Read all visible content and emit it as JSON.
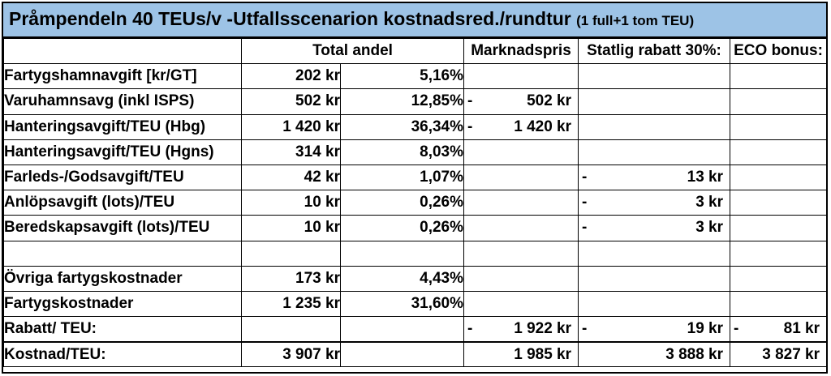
{
  "title": {
    "main": "Pråmpendeln 40 TEUs/v -Utfallsscenarion kostnadsred./rundtur",
    "sub": "(1 full+1 tom TEU)"
  },
  "headers": {
    "total_andel": "Total andel",
    "marknadspris": "Marknadspris",
    "statlig_rabatt": "Statlig rabatt 30%:",
    "eco_bonus": "ECO bonus:"
  },
  "rows": [
    {
      "label": "Fartygshamnavgift [kr/GT]",
      "amount": "202 kr",
      "share": "5,16%",
      "market": "",
      "state": "",
      "eco": ""
    },
    {
      "label": "Varuhamnsavg (inkl ISPS)",
      "amount": "502 kr",
      "share": "12,85%",
      "market_dash": "-",
      "market": "502 kr",
      "state": "",
      "eco": ""
    },
    {
      "label": "Hanteringsavgift/TEU (Hbg)",
      "amount": "1 420 kr",
      "share": "36,34%",
      "market_dash": "-",
      "market": "1 420 kr",
      "state": "",
      "eco": ""
    },
    {
      "label": "Hanteringsavgift/TEU (Hgns)",
      "amount": "314 kr",
      "share": "8,03%",
      "market": "",
      "state": "",
      "eco": ""
    },
    {
      "label": "Farleds-/Godsavgift/TEU",
      "amount": "42 kr",
      "share": "1,07%",
      "market": "",
      "state_dash": "-",
      "state": "13 kr",
      "eco": ""
    },
    {
      "label": "Anlöpsavgift (lots)/TEU",
      "amount": "10 kr",
      "share": "0,26%",
      "market": "",
      "state_dash": "-",
      "state": "3 kr",
      "eco": ""
    },
    {
      "label": "Beredskapsavgift (lots)/TEU",
      "amount": "10 kr",
      "share": "0,26%",
      "market": "",
      "state_dash": "-",
      "state": "3 kr",
      "eco": ""
    },
    {
      "label": "",
      "amount": "",
      "share": "",
      "market": "",
      "state": "",
      "eco": ""
    },
    {
      "label": "Övriga fartygskostnader",
      "amount": "173 kr",
      "share": "4,43%",
      "market": "",
      "state": "",
      "eco": ""
    },
    {
      "label": "Fartygskostnader",
      "amount": "1 235 kr",
      "share": "31,60%",
      "market": "",
      "state": "",
      "eco": ""
    },
    {
      "label": "Rabatt/ TEU:",
      "amount": "",
      "share": "",
      "market_dash": "-",
      "market": "1 922 kr",
      "state_dash": "-",
      "state": "19 kr",
      "eco_dash": "-",
      "eco": "81 kr"
    },
    {
      "label": "Kostnad/TEU:",
      "amount": "3 907 kr",
      "share": "",
      "market": "1 985 kr",
      "state": "3 888 kr",
      "eco": "3 827 kr"
    }
  ]
}
